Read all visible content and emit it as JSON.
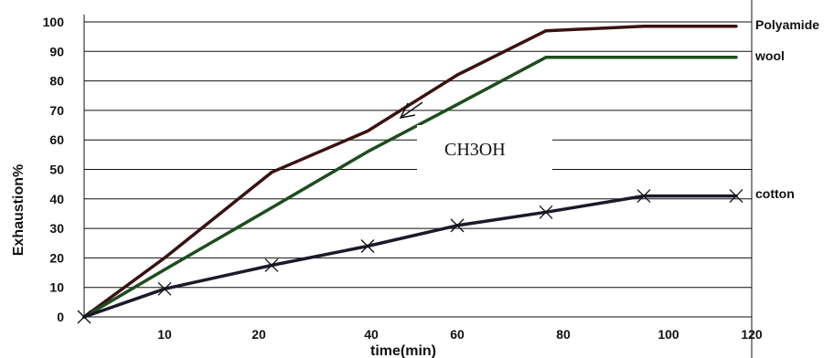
{
  "chart_data": {
    "type": "line",
    "xlabel": "time(min)",
    "ylabel": "Exhaustion%",
    "ylim": [
      0,
      100
    ],
    "x_tick_labels": [
      "10",
      "20",
      "40",
      "60",
      "80",
      "100",
      "120"
    ],
    "y_tick_labels": [
      "0",
      "10",
      "20",
      "30",
      "40",
      "50",
      "60",
      "70",
      "80",
      "90",
      "100"
    ],
    "x": [
      0,
      10,
      20,
      40,
      60,
      80,
      100,
      120
    ],
    "grid": "horizontal",
    "series": [
      {
        "name": "Polyamide",
        "color": "#3a1212",
        "values": [
          0,
          20,
          49,
          63,
          82,
          97,
          98.5,
          98.5
        ]
      },
      {
        "name": "wool",
        "color": "#1e4d1e",
        "values": [
          0,
          16,
          37,
          56,
          72,
          88,
          88,
          88
        ]
      },
      {
        "name": "cotton",
        "color": "#1a1a2a",
        "marker": "x",
        "values": [
          0,
          9.5,
          17.5,
          24,
          31,
          35.5,
          41,
          41
        ]
      }
    ],
    "annotations": [
      {
        "text": "CH3OH",
        "arrow_target_x": 40,
        "arrow_target_y": 67
      }
    ]
  }
}
